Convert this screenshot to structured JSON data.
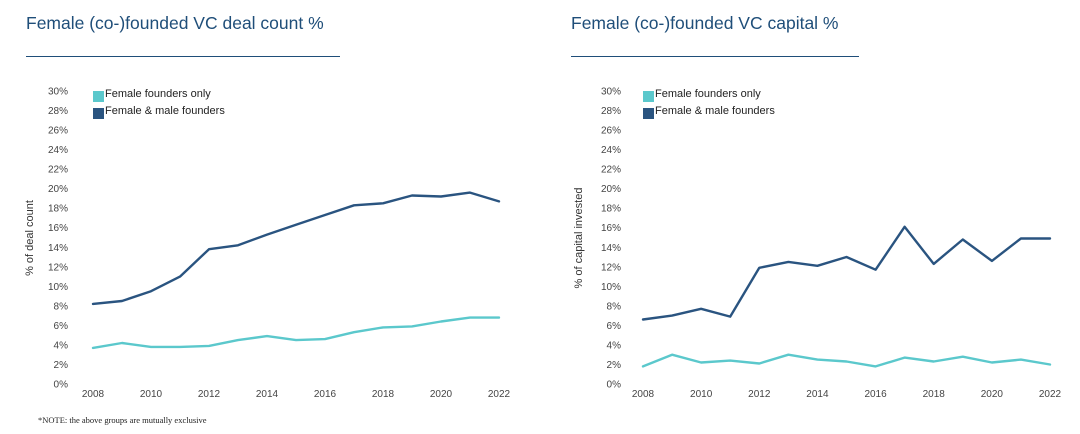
{
  "note": "*NOTE: the above groups are mutually exclusive",
  "chart_data": [
    {
      "type": "line",
      "title": "Female (co-)founded VC deal count %",
      "ylabel": "% of deal count",
      "xlabel": "",
      "ylim": [
        0,
        30
      ],
      "y_ticks": [
        "0%",
        "2%",
        "4%",
        "6%",
        "8%",
        "10%",
        "12%",
        "14%",
        "16%",
        "18%",
        "20%",
        "22%",
        "24%",
        "26%",
        "28%",
        "30%"
      ],
      "x_ticks": [
        "2008",
        "2010",
        "2012",
        "2014",
        "2016",
        "2018",
        "2020",
        "2022"
      ],
      "x": [
        2008,
        2009,
        2010,
        2011,
        2012,
        2013,
        2014,
        2015,
        2016,
        2017,
        2018,
        2019,
        2020,
        2021,
        2022
      ],
      "grid": false,
      "legend_position": "top-left",
      "series": [
        {
          "name": "Female founders only",
          "color": "#5bc8cc",
          "values": [
            3.7,
            4.2,
            3.8,
            3.8,
            3.9,
            4.5,
            4.9,
            4.5,
            4.6,
            5.3,
            5.8,
            5.9,
            6.4,
            6.8,
            6.8
          ]
        },
        {
          "name": "Female & male founders",
          "color": "#2a5480",
          "values": [
            8.2,
            8.5,
            9.5,
            11.0,
            13.8,
            14.2,
            15.3,
            16.3,
            17.3,
            18.3,
            18.5,
            19.3,
            19.2,
            19.6,
            18.7
          ]
        }
      ]
    },
    {
      "type": "line",
      "title": "Female (co-)founded VC capital %",
      "ylabel": "% of capital invested",
      "xlabel": "",
      "ylim": [
        0,
        30
      ],
      "y_ticks": [
        "0%",
        "2%",
        "4%",
        "6%",
        "8%",
        "10%",
        "12%",
        "14%",
        "16%",
        "18%",
        "20%",
        "22%",
        "24%",
        "26%",
        "28%",
        "30%"
      ],
      "x_ticks": [
        "2008",
        "2010",
        "2012",
        "2014",
        "2016",
        "2018",
        "2020",
        "2022"
      ],
      "x": [
        2008,
        2009,
        2010,
        2011,
        2012,
        2013,
        2014,
        2015,
        2016,
        2017,
        2018,
        2019,
        2020,
        2021,
        2022
      ],
      "grid": false,
      "legend_position": "top-left",
      "series": [
        {
          "name": "Female founders only",
          "color": "#5bc8cc",
          "values": [
            1.8,
            3.0,
            2.2,
            2.4,
            2.1,
            3.0,
            2.5,
            2.3,
            1.8,
            2.7,
            2.3,
            2.8,
            2.2,
            2.5,
            2.0
          ]
        },
        {
          "name": "Female & male founders",
          "color": "#2a5480",
          "values": [
            6.6,
            7.0,
            7.7,
            6.9,
            11.9,
            12.5,
            12.1,
            13.0,
            11.7,
            16.1,
            12.3,
            14.8,
            12.6,
            14.9,
            14.9
          ]
        }
      ]
    }
  ]
}
